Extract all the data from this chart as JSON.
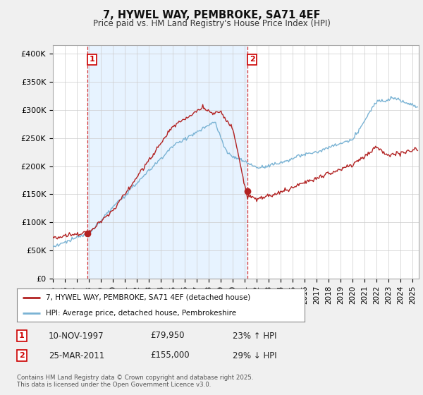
{
  "title": "7, HYWEL WAY, PEMBROKE, SA71 4EF",
  "subtitle": "Price paid vs. HM Land Registry's House Price Index (HPI)",
  "ylabel_ticks": [
    "£0",
    "£50K",
    "£100K",
    "£150K",
    "£200K",
    "£250K",
    "£300K",
    "£350K",
    "£400K"
  ],
  "ytick_values": [
    0,
    50000,
    100000,
    150000,
    200000,
    250000,
    300000,
    350000,
    400000
  ],
  "ylim": [
    0,
    415000
  ],
  "xlim_start": 1995.0,
  "xlim_end": 2025.5,
  "sale1": {
    "date_num": 1997.87,
    "price": 79950,
    "label": "1",
    "hpi_pct": "23% ↑ HPI",
    "date_str": "10-NOV-1997",
    "price_str": "£79,950"
  },
  "sale2": {
    "date_num": 2011.23,
    "price": 155000,
    "label": "2",
    "hpi_pct": "29% ↓ HPI",
    "date_str": "25-MAR-2011",
    "price_str": "£155,000"
  },
  "hpi_line_color": "#7ab3d4",
  "sale_line_color": "#b22222",
  "sale_dot_color": "#b22222",
  "legend_label_red": "7, HYWEL WAY, PEMBROKE, SA71 4EF (detached house)",
  "legend_label_blue": "HPI: Average price, detached house, Pembrokeshire",
  "footer": "Contains HM Land Registry data © Crown copyright and database right 2025.\nThis data is licensed under the Open Government Licence v3.0.",
  "background_color": "#f0f0f0",
  "plot_bg_color": "#ffffff",
  "shade_color": "#ddeeff",
  "grid_color": "#cccccc",
  "dashed_color": "#cc0000"
}
